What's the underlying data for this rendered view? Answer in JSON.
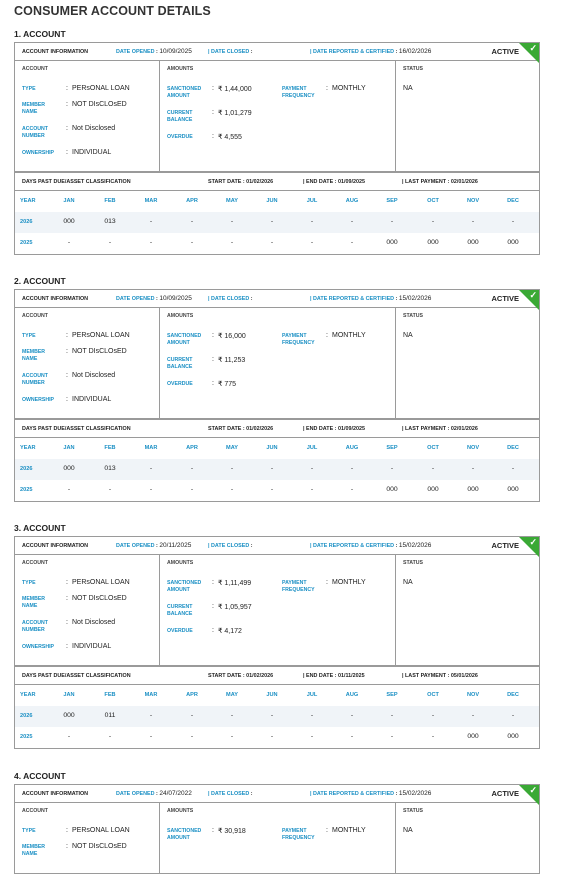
{
  "page_title": "CONSUMER ACCOUNT DETAILS",
  "labels": {
    "account_information": "ACCOUNT INFORMATION",
    "date_opened": "DATE OPENED",
    "date_closed": "DATE CLOSED",
    "date_reported": "DATE REPORTED & CERTIFIED",
    "col_account": "ACCOUNT",
    "col_amounts": "AMOUNTS",
    "col_status": "STATUS",
    "type": "TYPE",
    "member_name": "MEMBER NAME",
    "account_number": "ACCOUNT NUMBER",
    "ownership": "OWNERSHIP",
    "sanctioned_amount": "SANCTIONED AMOUNT",
    "current_balance": "CURRENT BALANCE",
    "overdue": "OVERDUE",
    "payment_frequency": "PAYMENT FREQUENCY",
    "dpd_title": "DAYS PAST DUE/ASSET CLASSIFICATION",
    "start_date": "START DATE",
    "end_date": "END DATE",
    "last_payment": "LAST PAYMENT",
    "months": [
      "YEAR",
      "JAN",
      "FEB",
      "MAR",
      "APR",
      "MAY",
      "JUN",
      "JUL",
      "AUG",
      "SEP",
      "OCT",
      "NOV",
      "DEC"
    ]
  },
  "accounts": [
    {
      "heading": "1. ACCOUNT",
      "status_tag": "ACTIVE",
      "date_opened": "10/09/2025",
      "date_closed": "",
      "date_reported": "16/02/2026",
      "type": "PERsONAL LOAN",
      "member_name": "NOT DIsCLOsED",
      "account_number": "Not Disclosed",
      "ownership": "INDIVIDUAL",
      "sanctioned": "₹ 1,44,000",
      "current_balance": "₹ 1,01,279",
      "overdue": "₹ 4,555",
      "payment_frequency": "MONTHLY",
      "status": "NA",
      "start_date": "01/02/2026",
      "end_date": "01/09/2025",
      "last_payment": "02/01/2026",
      "rows": [
        [
          "2026",
          "000",
          "013",
          "-",
          "-",
          "-",
          "-",
          "-",
          "-",
          "-",
          "-",
          "-",
          "-"
        ],
        [
          "2025",
          "-",
          "-",
          "-",
          "-",
          "-",
          "-",
          "-",
          "-",
          "000",
          "000",
          "000",
          "000"
        ]
      ]
    },
    {
      "heading": "2. ACCOUNT",
      "status_tag": "ACTIVE",
      "date_opened": "10/09/2025",
      "date_closed": "",
      "date_reported": "15/02/2026",
      "type": "PERsONAL LOAN",
      "member_name": "NOT DIsCLOsED",
      "account_number": "Not Disclosed",
      "ownership": "INDIVIDUAL",
      "sanctioned": "₹ 16,000",
      "current_balance": "₹ 11,253",
      "overdue": "₹ 775",
      "payment_frequency": "MONTHLY",
      "status": "NA",
      "start_date": "01/02/2026",
      "end_date": "01/09/2025",
      "last_payment": "02/01/2026",
      "rows": [
        [
          "2026",
          "000",
          "013",
          "-",
          "-",
          "-",
          "-",
          "-",
          "-",
          "-",
          "-",
          "-",
          "-"
        ],
        [
          "2025",
          "-",
          "-",
          "-",
          "-",
          "-",
          "-",
          "-",
          "-",
          "000",
          "000",
          "000",
          "000"
        ]
      ]
    },
    {
      "heading": "3. ACCOUNT",
      "status_tag": "ACTIVE",
      "date_opened": "20/11/2025",
      "date_closed": "",
      "date_reported": "15/02/2026",
      "type": "PERsONAL LOAN",
      "member_name": "NOT DIsCLOsED",
      "account_number": "Not Disclosed",
      "ownership": "INDIVIDUAL",
      "sanctioned": "₹ 1,11,499",
      "current_balance": "₹ 1,05,957",
      "overdue": "₹ 4,172",
      "payment_frequency": "MONTHLY",
      "status": "NA",
      "start_date": "01/02/2026",
      "end_date": "01/11/2025",
      "last_payment": "05/01/2026",
      "rows": [
        [
          "2026",
          "000",
          "011",
          "-",
          "-",
          "-",
          "-",
          "-",
          "-",
          "-",
          "-",
          "-",
          "-"
        ],
        [
          "2025",
          "-",
          "-",
          "-",
          "-",
          "-",
          "-",
          "-",
          "-",
          "-",
          "-",
          "000",
          "000"
        ]
      ]
    },
    {
      "heading": "4. ACCOUNT",
      "status_tag": "ACTIVE",
      "date_opened": "24/07/2022",
      "date_closed": "",
      "date_reported": "15/02/2026",
      "type": "PERsONAL LOAN",
      "member_name": "NOT DIsCLOsED",
      "sanctioned": "₹ 30,918",
      "payment_frequency": "MONTHLY",
      "status": "NA"
    }
  ]
}
